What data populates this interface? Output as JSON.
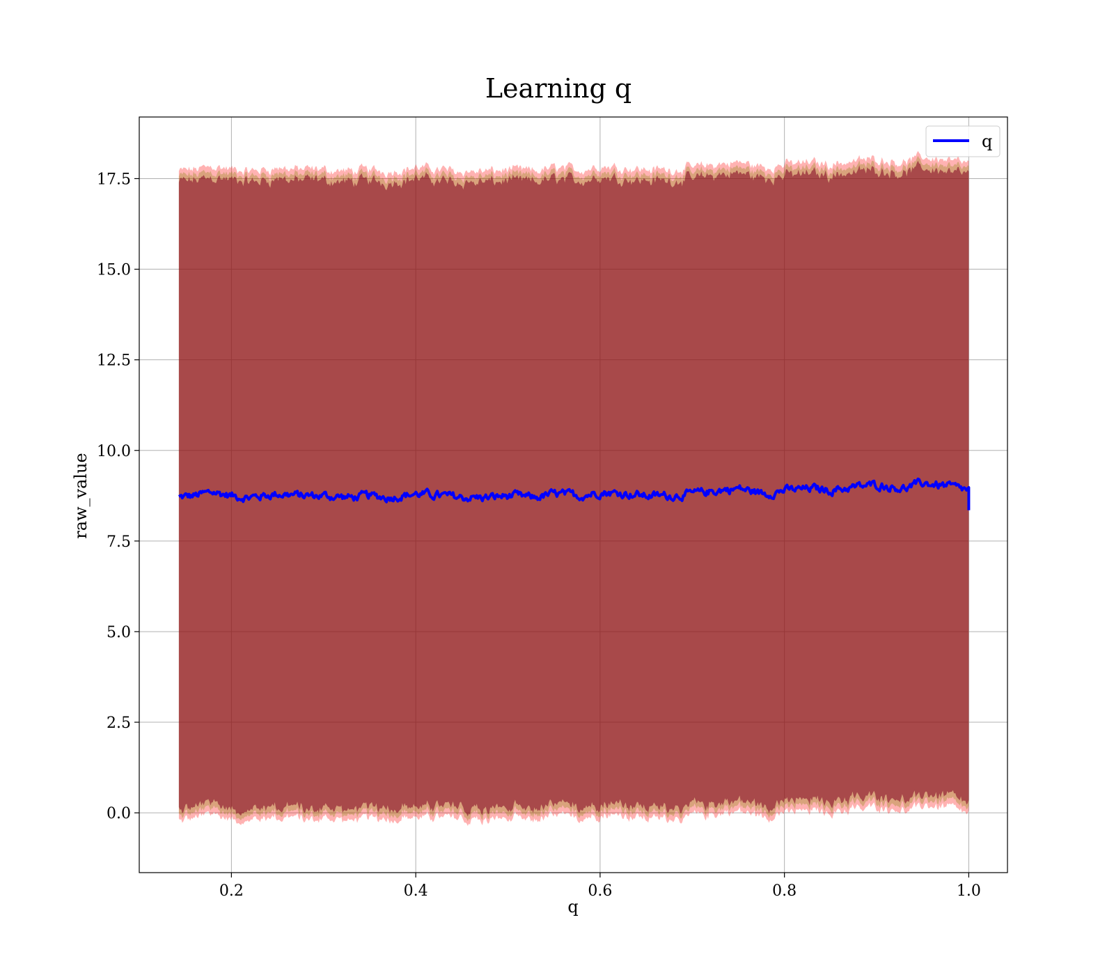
{
  "chart_data": {
    "type": "line",
    "title": "Learning q",
    "xlabel": "q",
    "ylabel": "raw_value",
    "xlim": [
      0.1,
      1.042
    ],
    "ylim": [
      -1.65,
      19.2
    ],
    "xticks": [
      0.2,
      0.4,
      0.6,
      0.8,
      1.0
    ],
    "xtick_labels": [
      "0.2",
      "0.4",
      "0.6",
      "0.8",
      "1.0"
    ],
    "yticks": [
      0.0,
      2.5,
      5.0,
      7.5,
      10.0,
      12.5,
      15.0,
      17.5
    ],
    "ytick_labels": [
      "0.0",
      "2.5",
      "5.0",
      "7.5",
      "10.0",
      "12.5",
      "15.0",
      "17.5"
    ],
    "grid": true,
    "legend": {
      "position": "top-right",
      "entries": [
        "q"
      ]
    },
    "x_range": [
      0.143,
      1.0
    ],
    "series": [
      {
        "name": "q",
        "color": "#0000ff",
        "x": [
          0.143,
          0.16,
          0.18,
          0.2,
          0.22,
          0.25,
          0.28,
          0.3,
          0.33,
          0.35,
          0.37,
          0.4,
          0.43,
          0.45,
          0.48,
          0.5,
          0.53,
          0.55,
          0.58,
          0.6,
          0.63,
          0.65,
          0.68,
          0.7,
          0.73,
          0.75,
          0.78,
          0.8,
          0.83,
          0.85,
          0.88,
          0.9,
          0.93,
          0.95,
          0.98,
          1.0
        ],
        "values": [
          8.7,
          8.75,
          8.85,
          8.75,
          8.7,
          8.8,
          8.75,
          8.75,
          8.7,
          8.75,
          8.7,
          8.8,
          8.75,
          8.7,
          8.7,
          8.75,
          8.7,
          8.8,
          8.75,
          8.85,
          8.8,
          8.75,
          8.75,
          8.8,
          8.9,
          8.95,
          8.8,
          8.9,
          8.95,
          8.9,
          9.0,
          9.05,
          8.95,
          9.1,
          9.0,
          8.9
        ]
      }
    ],
    "bands": [
      {
        "label_hidden": "outer",
        "color": "#ff0000",
        "opacity": 0.3,
        "lower_offset": -8.9,
        "upper_offset": 9.0
      },
      {
        "label_hidden": "middle",
        "color": "#808000",
        "opacity": 0.3,
        "lower_offset": -8.75,
        "upper_offset": 8.85
      },
      {
        "label_hidden": "inner",
        "color": "#800020",
        "opacity": 0.55,
        "lower_offset": -8.6,
        "upper_offset": 8.7
      }
    ]
  }
}
